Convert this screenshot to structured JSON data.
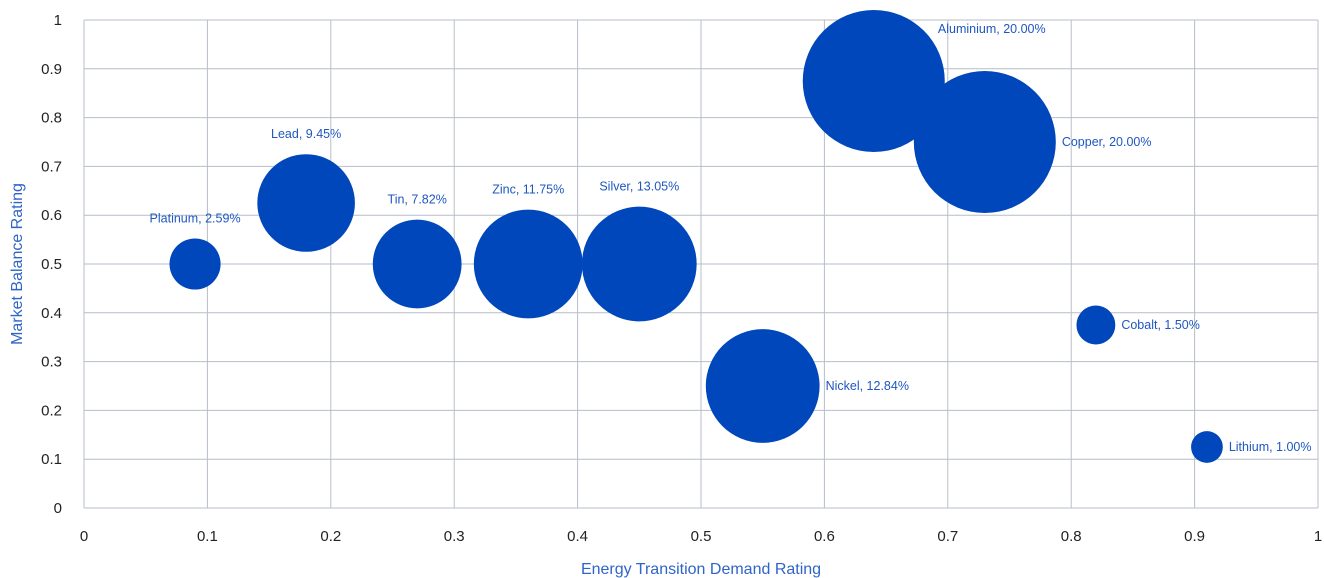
{
  "chart_data": {
    "type": "scatter",
    "bubble": true,
    "title": "",
    "xlabel": "Energy Transition Demand Rating",
    "ylabel": "Market Balance Rating",
    "xlim": [
      0,
      1
    ],
    "ylim": [
      0,
      1
    ],
    "x_ticks": [
      0,
      0.1,
      0.2,
      0.3,
      0.4,
      0.5,
      0.6,
      0.7,
      0.8,
      0.9,
      1
    ],
    "y_ticks": [
      0,
      0.1,
      0.2,
      0.3,
      0.4,
      0.5,
      0.6,
      0.7,
      0.8,
      0.9,
      1
    ],
    "x_tick_labels": [
      "0",
      "0.1",
      "0.2",
      "0.3",
      "0.4",
      "0.5",
      "0.6",
      "0.7",
      "0.8",
      "0.9",
      "1"
    ],
    "y_tick_labels": [
      "0",
      "0.1",
      "0.2",
      "0.3",
      "0.4",
      "0.5",
      "0.6",
      "0.7",
      "0.8",
      "0.9",
      "1"
    ],
    "grid": true,
    "bubble_color": "#0047BB",
    "label_color": "#1F57C0",
    "series": [
      {
        "points": [
          {
            "name": "Platinum",
            "x": 0.09,
            "y": 0.5,
            "value": 2.59,
            "label": "Platinum, 2.59%",
            "label_position": "above"
          },
          {
            "name": "Lead",
            "x": 0.18,
            "y": 0.625,
            "value": 9.45,
            "label": "Lead, 9.45%",
            "label_position": "above"
          },
          {
            "name": "Tin",
            "x": 0.27,
            "y": 0.5,
            "value": 7.82,
            "label": "Tin, 7.82%",
            "label_position": "above"
          },
          {
            "name": "Zinc",
            "x": 0.36,
            "y": 0.5,
            "value": 11.75,
            "label": "Zinc, 11.75%",
            "label_position": "above"
          },
          {
            "name": "Silver",
            "x": 0.45,
            "y": 0.5,
            "value": 13.05,
            "label": "Silver, 13.05%",
            "label_position": "above"
          },
          {
            "name": "Nickel",
            "x": 0.55,
            "y": 0.25,
            "value": 12.84,
            "label": "Nickel, 12.84%",
            "label_position": "right"
          },
          {
            "name": "Aluminium",
            "x": 0.64,
            "y": 0.875,
            "value": 20.0,
            "label": "Aluminium, 20.00%",
            "label_position": "upper-right"
          },
          {
            "name": "Copper",
            "x": 0.73,
            "y": 0.75,
            "value": 20.0,
            "label": "Copper, 20.00%",
            "label_position": "right"
          },
          {
            "name": "Cobalt",
            "x": 0.82,
            "y": 0.375,
            "value": 1.5,
            "label": "Cobalt, 1.50%",
            "label_position": "right"
          },
          {
            "name": "Lithium",
            "x": 0.91,
            "y": 0.125,
            "value": 1.0,
            "label": "Lithium, 1.00%",
            "label_position": "right"
          }
        ]
      }
    ]
  }
}
